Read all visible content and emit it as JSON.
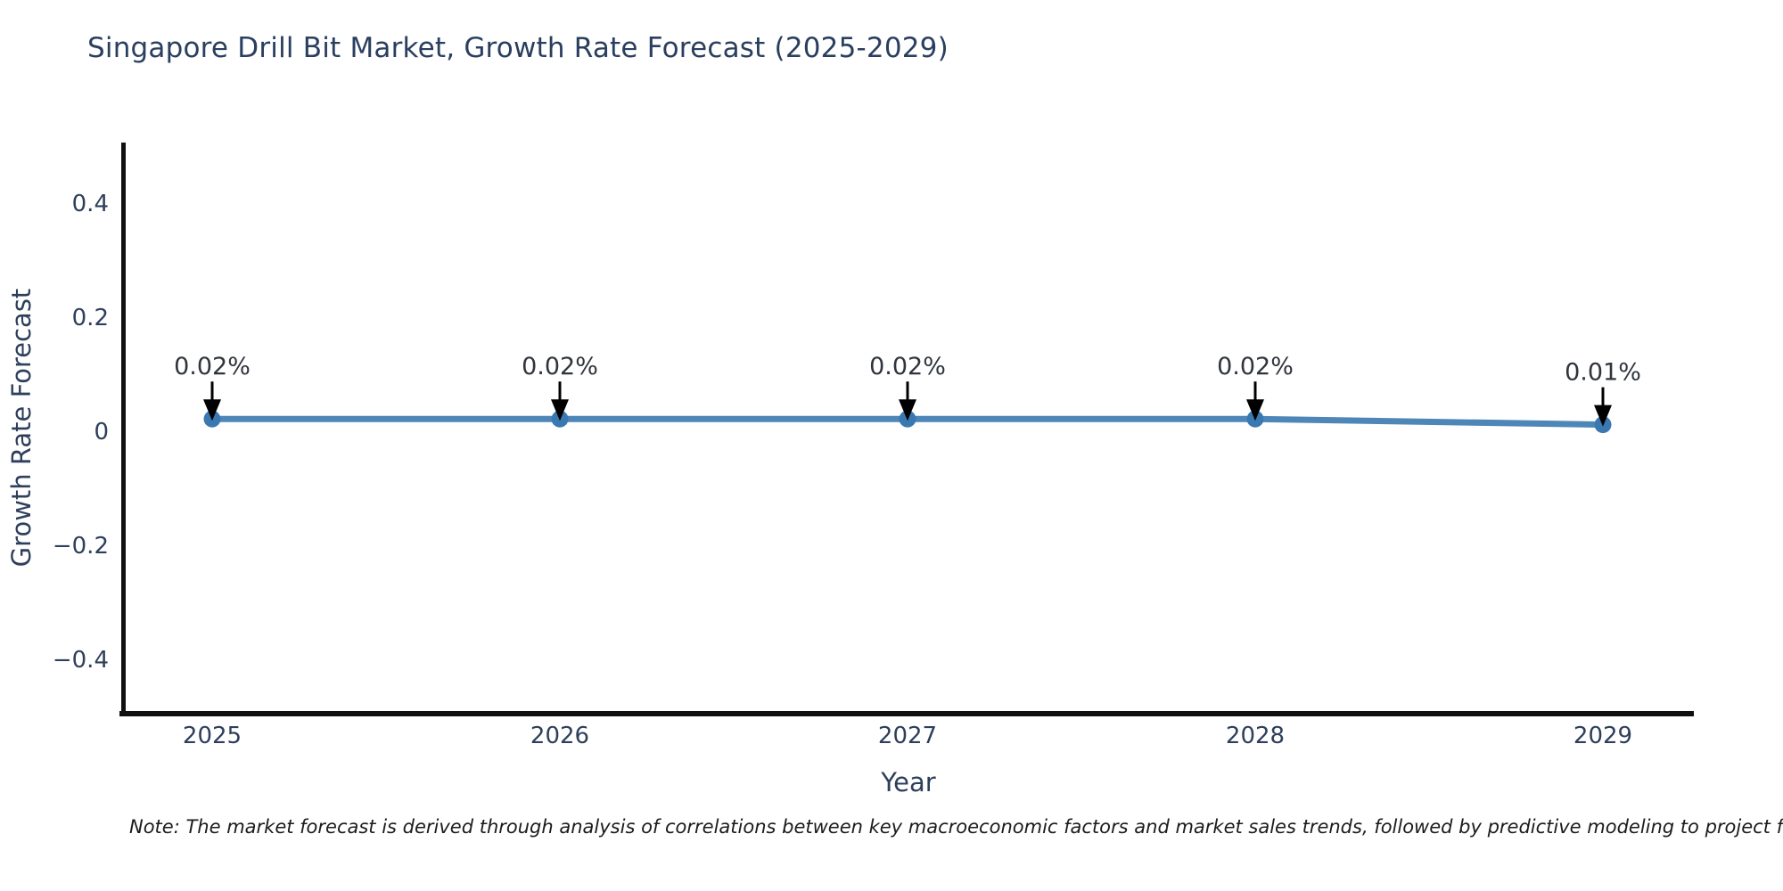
{
  "note": "Note: The market forecast is derived through analysis of correlations between key macroeconomic factors and market sales trends, followed by predictive modeling to project future sa",
  "chart_data": {
    "type": "line",
    "title": "Singapore Drill Bit Market, Growth Rate Forecast (2025-2029)",
    "xlabel": "Year",
    "ylabel": "Growth Rate Forecast",
    "x": [
      2025,
      2026,
      2027,
      2028,
      2029
    ],
    "xtick_labels": [
      "2025",
      "2026",
      "2027",
      "2028",
      "2029"
    ],
    "series": [
      {
        "name": "Growth Rate Forecast",
        "values": [
          0.02,
          0.02,
          0.02,
          0.02,
          0.01
        ]
      }
    ],
    "point_labels": [
      "0.02%",
      "0.02%",
      "0.02%",
      "0.02%",
      "0.01%"
    ],
    "yticks": [
      0.4,
      0.2,
      0,
      -0.2,
      -0.4
    ],
    "ytick_labels": [
      "0.4",
      "0.2",
      "0",
      "−0.2",
      "−0.4"
    ],
    "ylim": [
      -0.5,
      0.505
    ],
    "grid": false,
    "legend_position": "none",
    "colors": {
      "line": "#4e86b8",
      "marker": "#3a78b2",
      "axis_text": "#2e3f5c",
      "title_text": "#2a3f5f",
      "spine": "#111111",
      "annotation_text": "#30353c",
      "arrow": "#000000",
      "background": "#ffffff"
    }
  }
}
